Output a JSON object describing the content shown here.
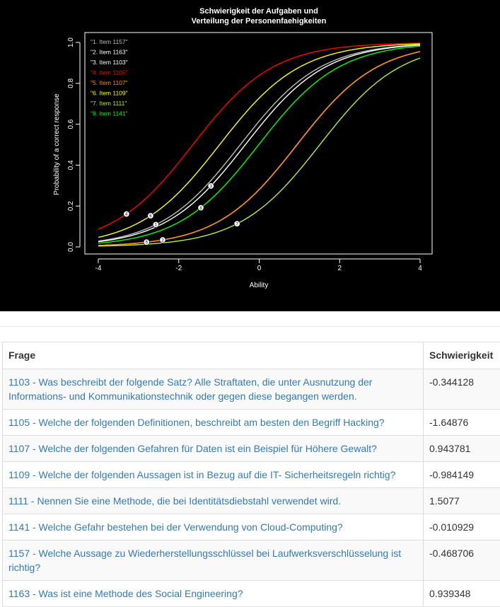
{
  "chart_data": {
    "type": "line",
    "title": "Schwierigkeit der Aufgaben und\nVerteilung der Personenfaehigkeiten",
    "xlabel": "Ability",
    "ylabel": "Probability of a correct response",
    "xlim": [
      -4,
      4
    ],
    "ylim": [
      0,
      1
    ],
    "xticks": [
      "-4",
      "-2",
      "0",
      "2",
      "4"
    ],
    "yticks": [
      "0.0",
      "0.2",
      "0.4",
      "0.6",
      "0.8",
      "1.0"
    ],
    "background": "#000000",
    "legend_position": "top-left",
    "series": [
      {
        "name": "\"1. Item 1157\"",
        "marker": "1",
        "color": "#bebebe",
        "difficulty": -0.468706,
        "marker_x": -2.57
      },
      {
        "name": "\"2. Item 1163\"",
        "marker": "2",
        "color": "#ffffff",
        "difficulty": 0.939348,
        "marker_x": -2.4
      },
      {
        "name": "\"3. Item 1103\"",
        "marker": "3",
        "color": "#ffffff",
        "difficulty": -0.344128,
        "marker_x": -1.2
      },
      {
        "name": "\"4. Item 1105\"",
        "marker": "4",
        "color": "#ff0000",
        "difficulty": -1.64876,
        "marker_x": -3.3
      },
      {
        "name": "\"5. Item 1107\"",
        "marker": "5",
        "color": "#ff8c00",
        "difficulty": 0.943781,
        "marker_x": -2.8
      },
      {
        "name": "\"6. Item 1109\"",
        "marker": "6",
        "color": "#ffff00",
        "difficulty": -0.984149,
        "marker_x": -2.7
      },
      {
        "name": "\"7. Item 1111\"",
        "marker": "7",
        "color": "#b3ee3a",
        "difficulty": 1.5077,
        "marker_x": -0.55
      },
      {
        "name": "\"8. Item 1141\"",
        "marker": "8",
        "color": "#00ff00",
        "difficulty": -0.010929,
        "marker_x": -1.45
      }
    ]
  },
  "table": {
    "headers": [
      "Frage",
      "Schwierigkeit"
    ],
    "rows": [
      {
        "question": "1103 - Was beschreibt der folgende Satz? Alle Straftaten, die unter Ausnutzung der Informations- und Kommunikationstechnik oder gegen diese begangen werden.",
        "value": "-0.344128"
      },
      {
        "question": "1105 - Welche der folgenden Definitionen, beschreibt am besten den Begriff Hacking?",
        "value": "-1.64876"
      },
      {
        "question": "1107 - Welche der folgenden Gefahren für Daten ist ein Beispiel für Höhere Gewalt?",
        "value": "0.943781"
      },
      {
        "question": "1109 - Welche der folgenden Aussagen ist in Bezug auf die IT- Sicherheitsregeln richtig?",
        "value": "-0.984149"
      },
      {
        "question": "1111 - Nennen Sie eine Methode, die bei Identitätsdiebstahl verwendet wird.",
        "value": "1.5077"
      },
      {
        "question": "1141 - Welche Gefahr bestehen bei der Verwendung von Cloud-Computing?",
        "value": "-0.010929"
      },
      {
        "question": "1157 - Welche Aussage zu Wiederherstellungsschlüssel bei Laufwerksverschlüsselung ist richtig?",
        "value": "-0.468706"
      },
      {
        "question": "1163 - Was ist eine Methode des Social Engineering?",
        "value": "0.939348"
      }
    ]
  }
}
